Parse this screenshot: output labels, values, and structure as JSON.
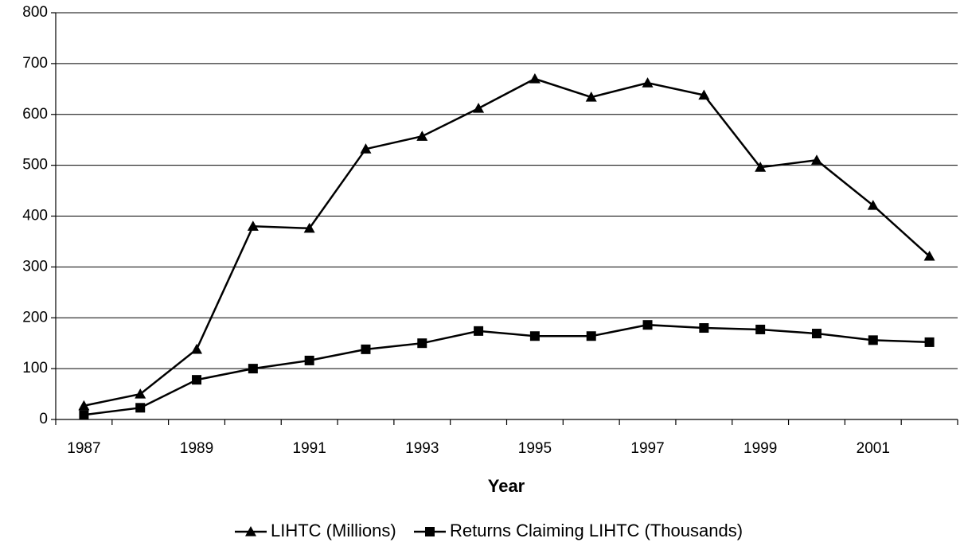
{
  "chart_data": {
    "type": "line",
    "x_label": "Year",
    "categories": [
      "1987",
      null,
      "1989",
      null,
      "1991",
      null,
      "1993",
      null,
      "1995",
      null,
      "1997",
      null,
      "1999",
      null,
      "2001",
      null
    ],
    "series": [
      {
        "name": "LIHTC (Millions)",
        "color": "#000000",
        "marker": "triangle",
        "values": [
          27,
          50,
          138,
          380,
          376,
          532,
          557,
          612,
          670,
          634,
          662,
          638,
          496,
          510,
          421,
          321
        ]
      },
      {
        "name": "Returns Claiming LIHTC (Thousands)",
        "color": "#000000",
        "marker": "square",
        "values": [
          9,
          23,
          78,
          100,
          116,
          138,
          150,
          174,
          164,
          164,
          186,
          180,
          177,
          169,
          156,
          152
        ]
      }
    ],
    "ylim": [
      0,
      800
    ],
    "yticks": [
      0,
      100,
      200,
      300,
      400,
      500,
      600,
      700,
      800
    ],
    "grid": true
  }
}
